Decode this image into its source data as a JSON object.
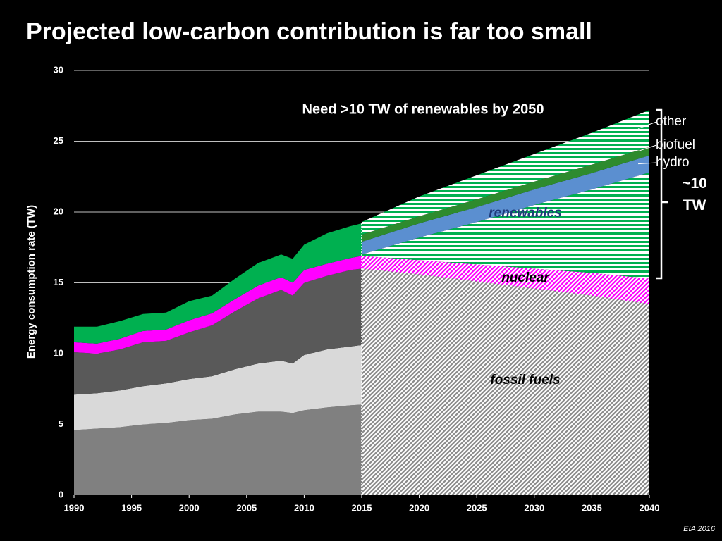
{
  "chart_data": {
    "type": "area",
    "stacked": true,
    "title": "Projected low-carbon contribution is far too small",
    "annotation": "Need >10 TW of renewables by 2050",
    "bracket_label": "~10 TW",
    "y_label": "Energy consumption rate (TW)",
    "source": "EIA 2016",
    "xlim": [
      1990,
      2040
    ],
    "ylim": [
      0,
      30
    ],
    "xticks": [
      1990,
      1995,
      2000,
      2005,
      2010,
      2015,
      2020,
      2025,
      2030,
      2035,
      2040
    ],
    "yticks": [
      0,
      5,
      10,
      15,
      20,
      25,
      30
    ],
    "grid": true,
    "history": {
      "x": [
        1990,
        1992,
        1994,
        1996,
        1998,
        2000,
        2002,
        2004,
        2006,
        2008,
        2009,
        2010,
        2012,
        2014,
        2015
      ],
      "series": [
        {
          "color": "#808080",
          "values": [
            4.6,
            4.7,
            4.8,
            5.0,
            5.1,
            5.3,
            5.4,
            5.7,
            5.9,
            5.9,
            5.8,
            6.0,
            6.2,
            6.35,
            6.4
          ]
        },
        {
          "color": "#d9d9d9",
          "values": [
            2.5,
            2.5,
            2.6,
            2.7,
            2.8,
            2.9,
            3.0,
            3.2,
            3.4,
            3.6,
            3.5,
            3.9,
            4.1,
            4.15,
            4.2
          ]
        },
        {
          "color": "#595959",
          "values": [
            3.0,
            2.8,
            2.9,
            3.1,
            3.0,
            3.3,
            3.6,
            4.1,
            4.6,
            5.0,
            4.8,
            5.1,
            5.2,
            5.4,
            5.4
          ]
        },
        {
          "color": "#ff00ff",
          "values": [
            0.7,
            0.7,
            0.75,
            0.8,
            0.8,
            0.85,
            0.85,
            0.85,
            0.9,
            0.9,
            0.9,
            0.9,
            0.85,
            0.85,
            0.9
          ]
        },
        {
          "color": "#00b050",
          "values": [
            1.1,
            1.2,
            1.25,
            1.2,
            1.2,
            1.35,
            1.25,
            1.45,
            1.6,
            1.6,
            1.7,
            1.8,
            2.15,
            2.25,
            2.3
          ]
        }
      ]
    },
    "projection": {
      "x": [
        2015,
        2020,
        2025,
        2030,
        2035,
        2040
      ],
      "series": [
        {
          "name": "fossil fuels",
          "color": "#8a8a8a",
          "hatch": "diagonal",
          "values": [
            16.0,
            15.6,
            15.1,
            14.6,
            14.1,
            13.5
          ]
        },
        {
          "name": "nuclear",
          "color": "#ff00ff",
          "hatch": "diagonal",
          "values": [
            0.9,
            1.0,
            1.2,
            1.4,
            1.6,
            1.8
          ]
        },
        {
          "name": "renewables",
          "color": "#00b050",
          "hatch": "horizontal",
          "values": [
            0.1,
            1.6,
            3.0,
            4.5,
            5.9,
            7.5
          ]
        },
        {
          "name": "hydro",
          "color": "#5b8fd0",
          "values": [
            0.9,
            1.0,
            1.05,
            1.1,
            1.15,
            1.2
          ]
        },
        {
          "name": "biofuel",
          "color": "#2e8b2e",
          "values": [
            0.5,
            0.5,
            0.55,
            0.55,
            0.6,
            0.6
          ]
        },
        {
          "name": "other",
          "color": "#00b050",
          "hatch": "horizontal",
          "values": [
            0.9,
            1.4,
            1.7,
            1.95,
            2.25,
            2.6
          ]
        }
      ]
    }
  }
}
